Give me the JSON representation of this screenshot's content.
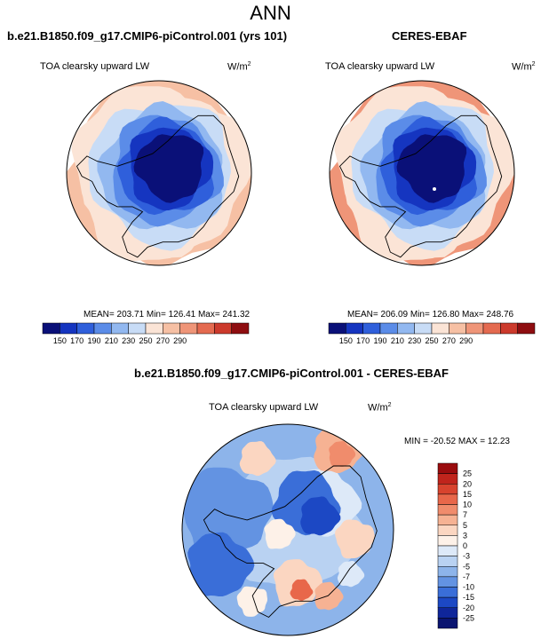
{
  "title": "ANN",
  "variable_label": "TOA clearsky upward LW",
  "units_base": "W/m",
  "units_exp": "2",
  "panels": [
    {
      "title": "b.e21.B1850.f09_g17.CMIP6-piControl.001 (yrs 101)",
      "stats": "MEAN= 203.71  Min= 126.41  Max= 241.32"
    },
    {
      "title": "CERES-EBAF",
      "stats": "MEAN= 206.09  Min= 126.80  Max= 248.76"
    },
    {
      "title": "b.e21.B1850.f09_g17.CMIP6-piControl.001 - CERES-EBAF",
      "stats": "MIN = -20.52 MAX =  12.23"
    }
  ],
  "chart_data": [
    {
      "type": "heatmap",
      "projection": "south-polar-stereographic",
      "title": "b.e21.B1850.f09_g17.CMIP6-piControl.001 (yrs 101)",
      "subtitle": "TOA clearsky upward LW",
      "units": "W/m^2",
      "mean": 203.71,
      "min": 126.41,
      "max": 241.32,
      "colorbar_ticks": [
        150,
        170,
        190,
        210,
        230,
        250,
        270,
        290
      ],
      "colors": [
        "#0a1078",
        "#1535c0",
        "#2f5fdb",
        "#5b8ce8",
        "#92b8f0",
        "#c8dcf6",
        "#fbe4d6",
        "#f6c0a4",
        "#ef9578",
        "#e46a50",
        "#cc3a2c",
        "#8e0d10"
      ]
    },
    {
      "type": "heatmap",
      "projection": "south-polar-stereographic",
      "title": "CERES-EBAF",
      "subtitle": "TOA clearsky upward LW",
      "units": "W/m^2",
      "mean": 206.09,
      "min": 126.8,
      "max": 248.76,
      "colorbar_ticks": [
        150,
        170,
        190,
        210,
        230,
        250,
        270,
        290
      ],
      "colors": [
        "#0a1078",
        "#1535c0",
        "#2f5fdb",
        "#5b8ce8",
        "#92b8f0",
        "#c8dcf6",
        "#fbe4d6",
        "#f6c0a4",
        "#ef9578",
        "#e46a50",
        "#cc3a2c",
        "#8e0d10"
      ]
    },
    {
      "type": "heatmap",
      "projection": "south-polar-stereographic",
      "title": "b.e21.B1850.f09_g17.CMIP6-piControl.001 - CERES-EBAF",
      "subtitle": "TOA clearsky upward LW",
      "units": "W/m^2",
      "min": -20.52,
      "max": 12.23,
      "colorbar_ticks": [
        25,
        20,
        15,
        10,
        7,
        5,
        3,
        0,
        -3,
        -5,
        -7,
        -10,
        -15,
        -20,
        -25
      ],
      "colors": [
        "#9a0c0e",
        "#c0241c",
        "#d8432e",
        "#e8674a",
        "#f08c6c",
        "#f6b293",
        "#fbd6c1",
        "#fdf1e8",
        "#dde9f8",
        "#b9d2f2",
        "#8db4ea",
        "#6393e2",
        "#3a6ed8",
        "#1c48c4",
        "#0f269a",
        "#0a1470"
      ]
    }
  ]
}
